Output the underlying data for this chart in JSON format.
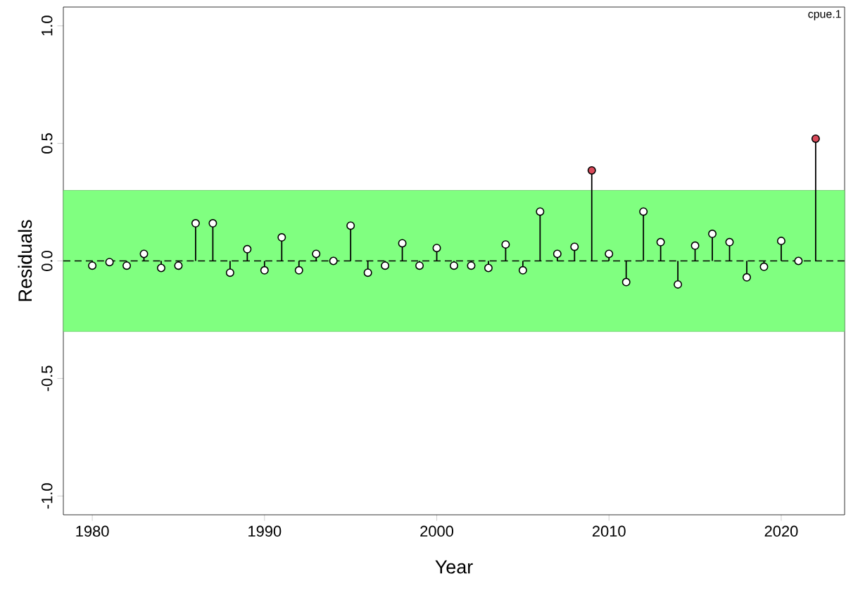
{
  "chart_data": {
    "type": "lollipop",
    "xlabel": "Year",
    "ylabel": "Residuals",
    "x": [
      1980,
      1981,
      1982,
      1983,
      1984,
      1985,
      1986,
      1987,
      1988,
      1989,
      1990,
      1991,
      1992,
      1993,
      1994,
      1995,
      1996,
      1997,
      1998,
      1999,
      2000,
      2001,
      2002,
      2003,
      2004,
      2005,
      2006,
      2007,
      2008,
      2009,
      2010,
      2011,
      2012,
      2013,
      2014,
      2015,
      2016,
      2017,
      2018,
      2019,
      2020,
      2021,
      2022
    ],
    "values": [
      -0.02,
      -0.005,
      -0.02,
      0.03,
      -0.03,
      -0.02,
      0.16,
      0.16,
      -0.05,
      0.05,
      -0.04,
      0.1,
      -0.04,
      0.03,
      0.0,
      0.15,
      -0.05,
      -0.02,
      0.075,
      -0.02,
      0.055,
      -0.02,
      -0.02,
      -0.03,
      0.07,
      -0.04,
      0.21,
      0.03,
      0.06,
      0.385,
      0.03,
      -0.09,
      0.21,
      0.08,
      -0.1,
      0.065,
      0.115,
      0.08,
      -0.07,
      -0.025,
      0.085,
      0.0,
      0.52
    ],
    "colors": [
      "#ffffff",
      "#ffffff",
      "#ffffff",
      "#ffffff",
      "#ffffff",
      "#ffffff",
      "#ffffff",
      "#ffffff",
      "#ffffff",
      "#ffffff",
      "#ffffff",
      "#ffffff",
      "#ffffff",
      "#ffffff",
      "#ffffff",
      "#ffffff",
      "#ffffff",
      "#ffffff",
      "#ffffff",
      "#ffffff",
      "#ffffff",
      "#ffffff",
      "#ffffff",
      "#ffffff",
      "#ffffff",
      "#ffffff",
      "#ffffff",
      "#ffffff",
      "#ffffff",
      "#d94a5a",
      "#ffffff",
      "#ffffff",
      "#ffffff",
      "#ffffff",
      "#ffffff",
      "#ffffff",
      "#ffffff",
      "#ffffff",
      "#ffffff",
      "#ffffff",
      "#ffffff",
      "#ffffff",
      "#d94a5a"
    ],
    "xlim": [
      1978.32,
      2023.68
    ],
    "ylim": [
      -1.08,
      1.08
    ],
    "xticks": [
      1980,
      1990,
      2000,
      2010,
      2020
    ],
    "yticks": [
      {
        "value": -1,
        "label": "-1.0"
      },
      {
        "value": -0.5,
        "label": "-0.5"
      },
      {
        "value": 0,
        "label": "0.0"
      },
      {
        "value": 0.5,
        "label": "0.5"
      },
      {
        "value": 1,
        "label": "1.0"
      }
    ],
    "marker": "circle",
    "grid": false,
    "ref_lines": [
      {
        "axis": "y",
        "value": 0,
        "line_style": "dashed",
        "color": "#000000"
      }
    ],
    "bands": [
      {
        "axis": "y",
        "from": -0.3,
        "to": 0.3,
        "color": "#80ff80"
      }
    ],
    "annotations": [
      "cpue.1"
    ]
  }
}
